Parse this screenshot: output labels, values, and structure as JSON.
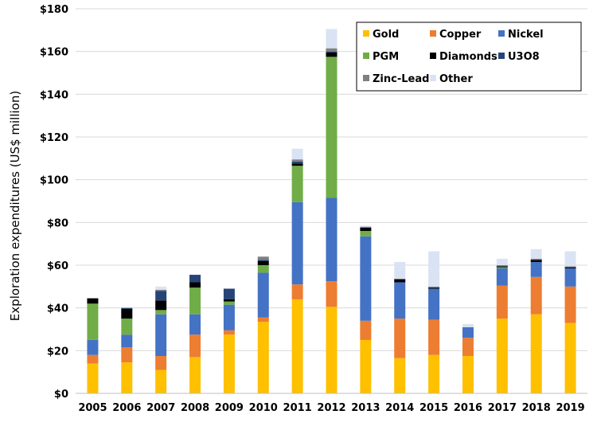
{
  "chart_data": {
    "type": "bar",
    "stacked": true,
    "title": "",
    "xlabel": "",
    "ylabel": "Exploration expenditures (US$ million)",
    "ylim": [
      0,
      180
    ],
    "y_tick_step": 20,
    "y_tick_format": "$",
    "grid": "horizontal",
    "legend_position": "top-right",
    "categories": [
      "2005",
      "2006",
      "2007",
      "2008",
      "2009",
      "2010",
      "2011",
      "2012",
      "2013",
      "2014",
      "2015",
      "2016",
      "2017",
      "2018",
      "2019"
    ],
    "series": [
      {
        "name": "Gold",
        "color": "#FFC000",
        "values": [
          14,
          14.5,
          11,
          17,
          27.5,
          33.5,
          44,
          40.5,
          25,
          16.5,
          18,
          17.5,
          35,
          37,
          33
        ]
      },
      {
        "name": "Copper",
        "color": "#ED7D31",
        "values": [
          4,
          7,
          6.5,
          10.5,
          2,
          2,
          7,
          12,
          9,
          18.5,
          16.5,
          8.5,
          15.5,
          17.5,
          17
        ]
      },
      {
        "name": "Nickel",
        "color": "#4472C4",
        "values": [
          7,
          6,
          19.5,
          9.5,
          12,
          21,
          38.5,
          39,
          39.5,
          17,
          14.5,
          5,
          8,
          7,
          8.5
        ]
      },
      {
        "name": "PGM",
        "color": "#70AD47",
        "values": [
          17,
          7.5,
          2,
          12.5,
          1.5,
          3.5,
          17,
          66,
          2.5,
          0,
          0,
          0,
          0.5,
          0,
          0
        ]
      },
      {
        "name": "Diamonds",
        "color": "#000000",
        "values": [
          2.5,
          4.5,
          4.5,
          2.5,
          1,
          2,
          1,
          2,
          1.5,
          1.5,
          0.5,
          0,
          0.5,
          1,
          0.5
        ]
      },
      {
        "name": "U3O8",
        "color": "#264478",
        "values": [
          0,
          0.5,
          4.5,
          3.5,
          5,
          0.5,
          1,
          0.5,
          0,
          0,
          0,
          0,
          0,
          0,
          0
        ]
      },
      {
        "name": "Zinc-Lead",
        "color": "#808080",
        "values": [
          0,
          0,
          0.5,
          0,
          0,
          1.5,
          1,
          1.5,
          0.5,
          0,
          0.5,
          0,
          0.5,
          0.5,
          0.5
        ]
      },
      {
        "name": "Other",
        "color": "#DAE3F3",
        "values": [
          0,
          0,
          1.5,
          0,
          0,
          0,
          5,
          9,
          0.5,
          8,
          16.5,
          1.5,
          3,
          4.5,
          7
        ]
      }
    ]
  }
}
